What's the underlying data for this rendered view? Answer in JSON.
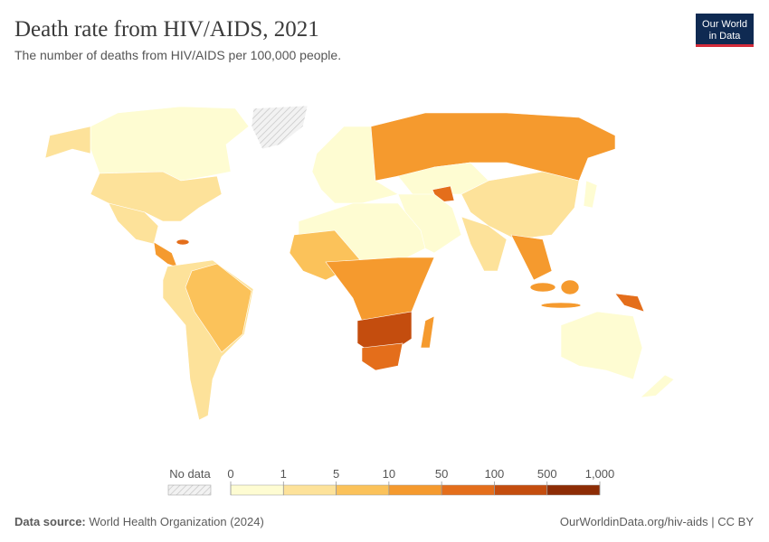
{
  "header": {
    "title": "Death rate from HIV/AIDS, 2021",
    "subtitle": "The number of deaths from HIV/AIDS per 100,000 people.",
    "logo": [
      "Our World",
      "in Data"
    ]
  },
  "legend": {
    "no_data": "No data",
    "ticks": [
      0,
      1,
      5,
      10,
      50,
      100,
      500,
      {
        "value": 1000,
        "label": "1,000"
      }
    ],
    "colors": [
      "#fefcd2",
      "#fde29a",
      "#fbc25a",
      "#f59a2e",
      "#e46e1b",
      "#c44d0e",
      "#8d2c05"
    ]
  },
  "footer": {
    "source_label": "Data source:",
    "source": "World Health Organization (2024)",
    "link": "OurWorldinData.org/hiv-aids | CC BY"
  }
}
